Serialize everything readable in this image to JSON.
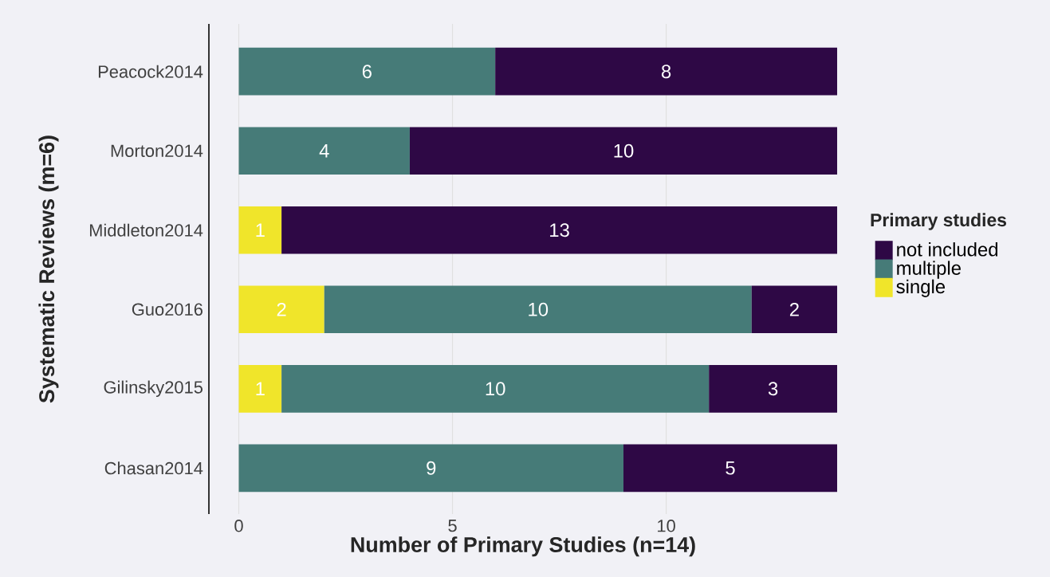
{
  "chart_data": {
    "type": "bar",
    "orientation": "horizontal",
    "stacked": true,
    "xlabel": "Number of Primary Studies (n=14)",
    "ylabel": "Systematic Reviews (m=6)",
    "legend_title": "Primary studies",
    "categories": [
      "Peacock2014",
      "Morton2014",
      "Middleton2014",
      "Guo2016",
      "Gilinsky2015",
      "Chasan2014"
    ],
    "series": [
      {
        "name": "single",
        "color": "#f0e52a",
        "values": [
          null,
          null,
          1,
          2,
          1,
          null
        ]
      },
      {
        "name": "multiple",
        "color": "#467b78",
        "values": [
          6,
          4,
          null,
          10,
          10,
          9
        ]
      },
      {
        "name": "not included",
        "color": "#2e0845",
        "values": [
          8,
          10,
          13,
          2,
          3,
          5
        ]
      }
    ],
    "xlim": [
      -0.7,
      14
    ],
    "xticks": [
      0,
      5,
      10
    ],
    "grid": "x",
    "legend": "right",
    "data_labels": true
  }
}
